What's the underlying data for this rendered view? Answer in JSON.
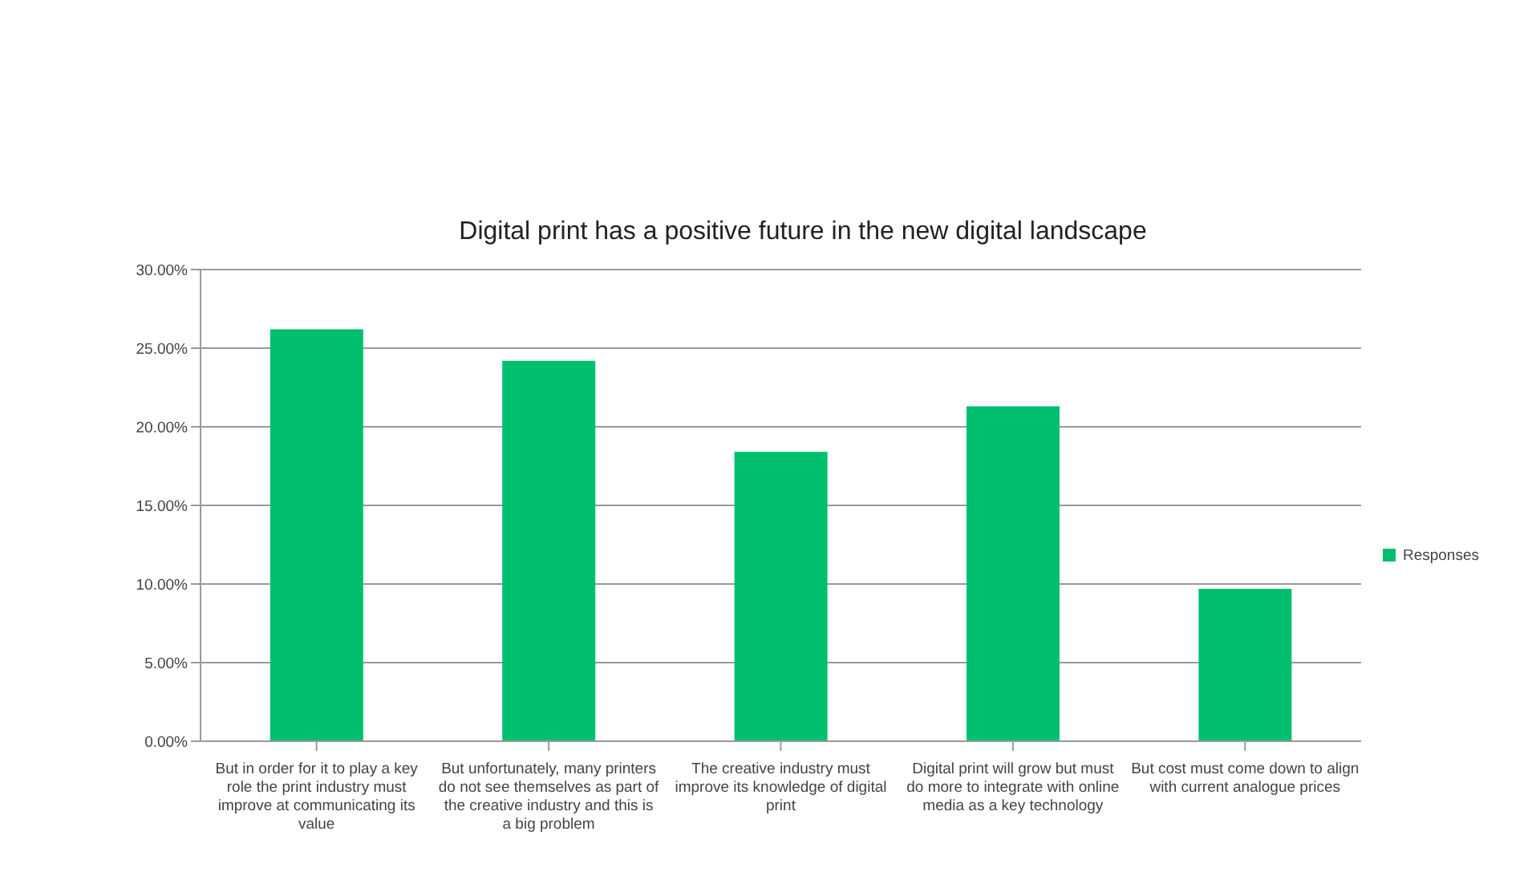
{
  "chart_data": {
    "type": "bar",
    "title": "Digital print has a positive future in the new digital landscape",
    "categories": [
      "But in order for it to play a key role the print industry must improve at communicating its value",
      "But unfortunately, many printers do not see themselves as part of the creative industry and this is a big problem",
      "The creative industry must improve its knowledge of digital print",
      "Digital print will grow but must do more to integrate with online media as a key technology",
      "But cost must come down to align with current analogue prices"
    ],
    "series": [
      {
        "name": "Responses",
        "color": "#00bf6f",
        "values": [
          26.2,
          24.2,
          18.4,
          21.3,
          9.7
        ]
      }
    ],
    "ylim": [
      0,
      30
    ],
    "yticks": [
      {
        "value": 0,
        "label": "0.00%"
      },
      {
        "value": 5,
        "label": "5.00%"
      },
      {
        "value": 10,
        "label": "10.00%"
      },
      {
        "value": 15,
        "label": "15.00%"
      },
      {
        "value": 20,
        "label": "20.00%"
      },
      {
        "value": 25,
        "label": "25.00%"
      },
      {
        "value": 30,
        "label": "30.00%"
      }
    ],
    "grid": "y",
    "legend": "right"
  }
}
